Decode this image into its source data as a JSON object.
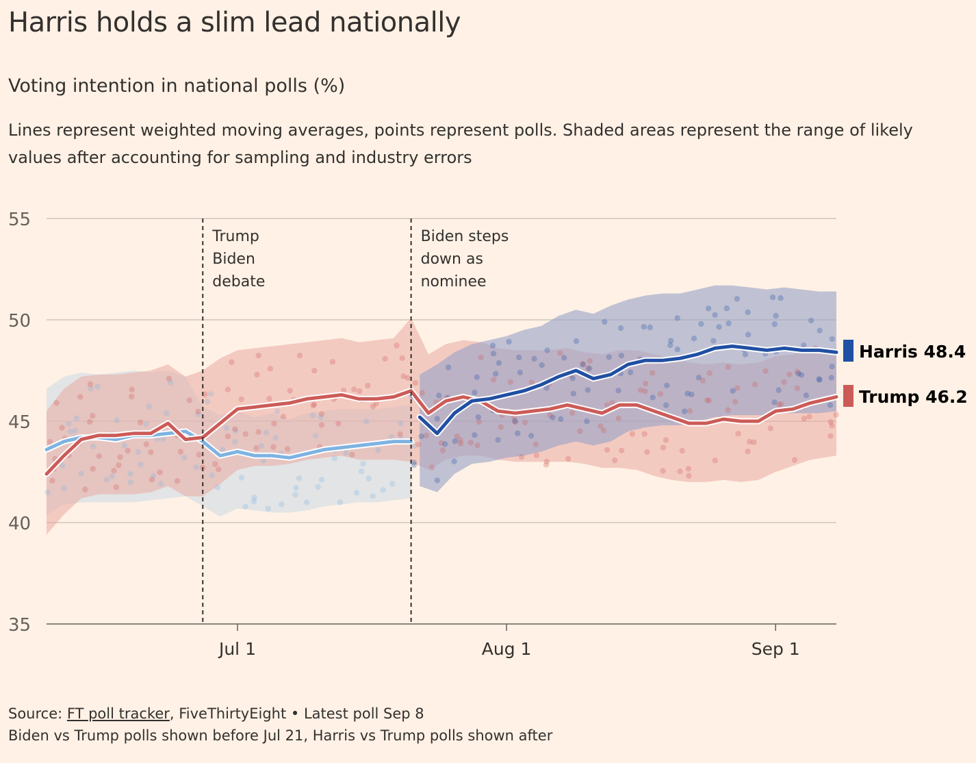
{
  "header": {
    "title": "Harris holds a slim lead nationally",
    "subtitle": "Voting intention in national polls (%)",
    "description": "Lines represent weighted moving averages, points represent polls. Shaded areas represent the range of likely values after accounting for sampling and industry errors"
  },
  "footer": {
    "source_prefix": "Source: ",
    "source_link": "FT poll tracker",
    "source_rest": ", FiveThirtyEight • Latest poll Sep 8",
    "note": "Biden vs Trump polls shown before Jul 21, Harris vs Trump polls shown after"
  },
  "chart_data": {
    "type": "line",
    "x_axis": {
      "type": "date",
      "start": "2024-06-09",
      "end": "2024-09-08",
      "ticks": [
        {
          "date": "2024-07-01",
          "label": "Jul 1"
        },
        {
          "date": "2024-08-01",
          "label": "Aug 1"
        },
        {
          "date": "2024-09-01",
          "label": "Sep 1"
        }
      ]
    },
    "y_axis": {
      "ylim": [
        35,
        55
      ],
      "ticks": [
        35,
        40,
        45,
        50,
        55
      ]
    },
    "grid": true,
    "annotations": [
      {
        "date": "2024-06-27",
        "lines": [
          "Trump",
          "Biden",
          "debate"
        ]
      },
      {
        "date": "2024-07-21",
        "lines": [
          "Biden steps",
          "down as",
          "nominee"
        ]
      }
    ],
    "end_labels": [
      {
        "name": "Harris",
        "value": "48.4",
        "color": "#204fa3"
      },
      {
        "name": "Trump",
        "value": "46.2",
        "color": "#cc5b57"
      }
    ],
    "colors": {
      "biden": "#7eb3e2",
      "harris": "#204fa3",
      "trump": "#cc5b57",
      "biden_band": "#cbd8e6",
      "harris_band": "#9aa3c8",
      "trump_band": "#e9a9a3"
    },
    "series": [
      {
        "name": "Biden",
        "x": [
          "2024-06-09",
          "2024-06-11",
          "2024-06-13",
          "2024-06-15",
          "2024-06-17",
          "2024-06-19",
          "2024-06-21",
          "2024-06-23",
          "2024-06-25",
          "2024-06-27",
          "2024-06-29",
          "2024-07-01",
          "2024-07-03",
          "2024-07-05",
          "2024-07-07",
          "2024-07-09",
          "2024-07-11",
          "2024-07-13",
          "2024-07-15",
          "2024-07-17",
          "2024-07-19",
          "2024-07-21"
        ],
        "values": [
          43.6,
          44.0,
          44.2,
          44.2,
          44.1,
          44.3,
          44.3,
          44.4,
          44.5,
          44.0,
          43.3,
          43.5,
          43.3,
          43.3,
          43.2,
          43.4,
          43.6,
          43.7,
          43.8,
          43.9,
          44.0,
          44.0
        ],
        "band_upper": [
          46.6,
          47.2,
          47.4,
          47.3,
          47.4,
          47.5,
          47.4,
          47.5,
          47.2,
          45.7,
          45.3,
          45.5,
          45.2,
          45.4,
          45.1,
          45.4,
          45.5,
          45.6,
          45.6,
          45.6,
          45.7,
          45.8
        ],
        "band_lower": [
          40.4,
          40.9,
          41.0,
          41.0,
          41.0,
          41.0,
          41.1,
          41.2,
          41.3,
          40.8,
          40.3,
          40.7,
          40.6,
          40.5,
          40.5,
          40.6,
          40.8,
          40.9,
          41.0,
          41.0,
          41.1,
          41.2
        ]
      },
      {
        "name": "Harris",
        "x": [
          "2024-07-22",
          "2024-07-24",
          "2024-07-26",
          "2024-07-28",
          "2024-07-30",
          "2024-08-01",
          "2024-08-03",
          "2024-08-05",
          "2024-08-07",
          "2024-08-09",
          "2024-08-11",
          "2024-08-13",
          "2024-08-15",
          "2024-08-17",
          "2024-08-19",
          "2024-08-21",
          "2024-08-23",
          "2024-08-25",
          "2024-08-27",
          "2024-08-29",
          "2024-08-31",
          "2024-09-02",
          "2024-09-04",
          "2024-09-06",
          "2024-09-08"
        ],
        "values": [
          45.2,
          44.4,
          45.4,
          46.0,
          46.1,
          46.3,
          46.5,
          46.8,
          47.2,
          47.5,
          47.1,
          47.3,
          47.8,
          48.0,
          48.0,
          48.1,
          48.3,
          48.6,
          48.7,
          48.6,
          48.5,
          48.6,
          48.5,
          48.5,
          48.4
        ],
        "band_upper": [
          47.3,
          47.8,
          48.4,
          48.8,
          49.0,
          49.2,
          49.5,
          49.7,
          50.2,
          50.5,
          50.3,
          50.7,
          51.0,
          51.2,
          51.3,
          51.3,
          51.5,
          51.7,
          51.7,
          51.6,
          51.5,
          51.6,
          51.5,
          51.4,
          51.4
        ],
        "band_lower": [
          41.8,
          41.5,
          42.4,
          42.9,
          43.0,
          43.2,
          43.3,
          43.5,
          43.8,
          44.0,
          43.8,
          44.0,
          44.5,
          44.7,
          44.8,
          44.8,
          45.0,
          45.2,
          45.3,
          45.3,
          45.3,
          45.4,
          45.4,
          45.4,
          45.5
        ]
      },
      {
        "name": "Trump",
        "x": [
          "2024-06-09",
          "2024-06-11",
          "2024-06-13",
          "2024-06-15",
          "2024-06-17",
          "2024-06-19",
          "2024-06-21",
          "2024-06-23",
          "2024-06-25",
          "2024-06-27",
          "2024-06-29",
          "2024-07-01",
          "2024-07-03",
          "2024-07-05",
          "2024-07-07",
          "2024-07-09",
          "2024-07-11",
          "2024-07-13",
          "2024-07-15",
          "2024-07-17",
          "2024-07-19",
          "2024-07-21",
          "2024-07-23",
          "2024-07-25",
          "2024-07-27",
          "2024-07-29",
          "2024-07-31",
          "2024-08-02",
          "2024-08-04",
          "2024-08-06",
          "2024-08-08",
          "2024-08-10",
          "2024-08-12",
          "2024-08-14",
          "2024-08-16",
          "2024-08-18",
          "2024-08-20",
          "2024-08-22",
          "2024-08-24",
          "2024-08-26",
          "2024-08-28",
          "2024-08-30",
          "2024-09-01",
          "2024-09-03",
          "2024-09-05",
          "2024-09-08"
        ],
        "values": [
          42.4,
          43.3,
          44.1,
          44.3,
          44.3,
          44.4,
          44.4,
          44.9,
          44.1,
          44.2,
          44.9,
          45.6,
          45.7,
          45.8,
          45.9,
          46.1,
          46.2,
          46.3,
          46.1,
          46.1,
          46.2,
          46.5,
          45.4,
          46.0,
          46.2,
          46.0,
          45.5,
          45.4,
          45.5,
          45.6,
          45.8,
          45.6,
          45.4,
          45.8,
          45.8,
          45.5,
          45.2,
          44.9,
          44.9,
          45.1,
          45.0,
          45.0,
          45.5,
          45.6,
          45.9,
          46.2
        ],
        "band_upper": [
          45.5,
          46.6,
          47.2,
          47.3,
          47.3,
          47.4,
          47.5,
          47.8,
          47.2,
          47.5,
          48.1,
          48.5,
          48.6,
          48.7,
          48.8,
          48.9,
          49.0,
          49.1,
          48.9,
          49.0,
          49.1,
          50.1,
          48.3,
          48.8,
          49.0,
          48.9,
          48.6,
          48.5,
          48.5,
          48.5,
          48.6,
          48.4,
          48.3,
          48.5,
          48.5,
          48.3,
          48.1,
          47.9,
          47.8,
          47.9,
          47.8,
          47.9,
          48.2,
          48.3,
          48.5,
          48.6
        ],
        "band_lower": [
          39.4,
          40.4,
          41.2,
          41.4,
          41.4,
          41.4,
          41.5,
          41.8,
          41.3,
          41.3,
          41.9,
          42.6,
          42.8,
          42.8,
          42.9,
          43.1,
          43.2,
          43.3,
          43.1,
          43.1,
          43.1,
          43.0,
          42.6,
          43.1,
          43.3,
          43.3,
          43.1,
          43.0,
          43.0,
          43.0,
          43.0,
          42.9,
          42.7,
          42.7,
          42.6,
          42.3,
          42.1,
          42.0,
          42.0,
          42.1,
          42.0,
          42.1,
          42.5,
          42.8,
          43.1,
          43.3
        ]
      }
    ]
  }
}
